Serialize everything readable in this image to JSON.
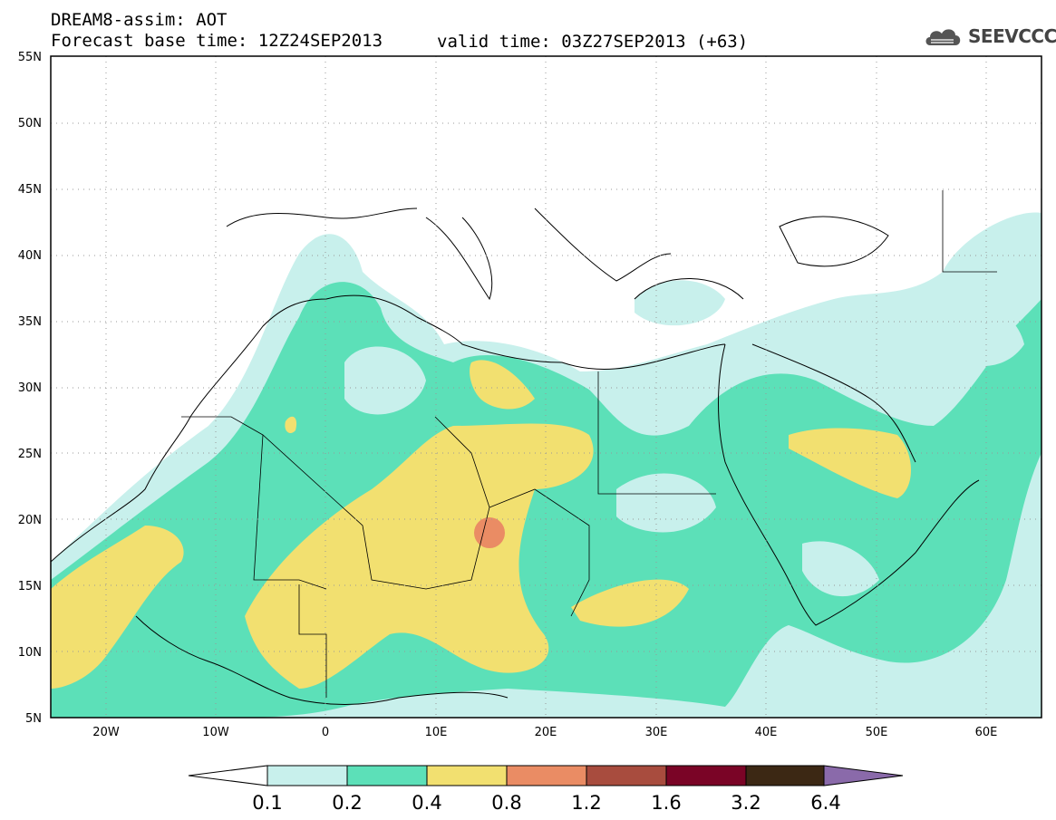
{
  "header": {
    "line1": "DREAM8-assim: AOT",
    "base_time": "Forecast base time: 12Z24SEP2013",
    "valid_time": "valid time: 03Z27SEP2013 (+63)"
  },
  "logo": {
    "text": "SEEVCCC",
    "icon": "cloud-icon"
  },
  "map": {
    "lat_labels": [
      "55N",
      "50N",
      "45N",
      "40N",
      "35N",
      "30N",
      "25N",
      "20N",
      "15N",
      "10N",
      "5N"
    ],
    "lon_labels": [
      "20W",
      "10W",
      "0",
      "10E",
      "20E",
      "30E",
      "40E",
      "50E",
      "60E"
    ],
    "extent": {
      "lon_min": -25,
      "lon_max": 65,
      "lat_min": 5,
      "lat_max": 55
    }
  },
  "legend": {
    "levels": [
      "0.1",
      "0.2",
      "0.4",
      "0.8",
      "1.2",
      "1.6",
      "3.2",
      "6.4"
    ],
    "colors": [
      "#c8f0ec",
      "#5ce0b8",
      "#f2e070",
      "#ea8c64",
      "#a84c3e",
      "#7a0426",
      "#3c2814",
      "#8a6aaa"
    ],
    "under_color": "#ffffff"
  }
}
